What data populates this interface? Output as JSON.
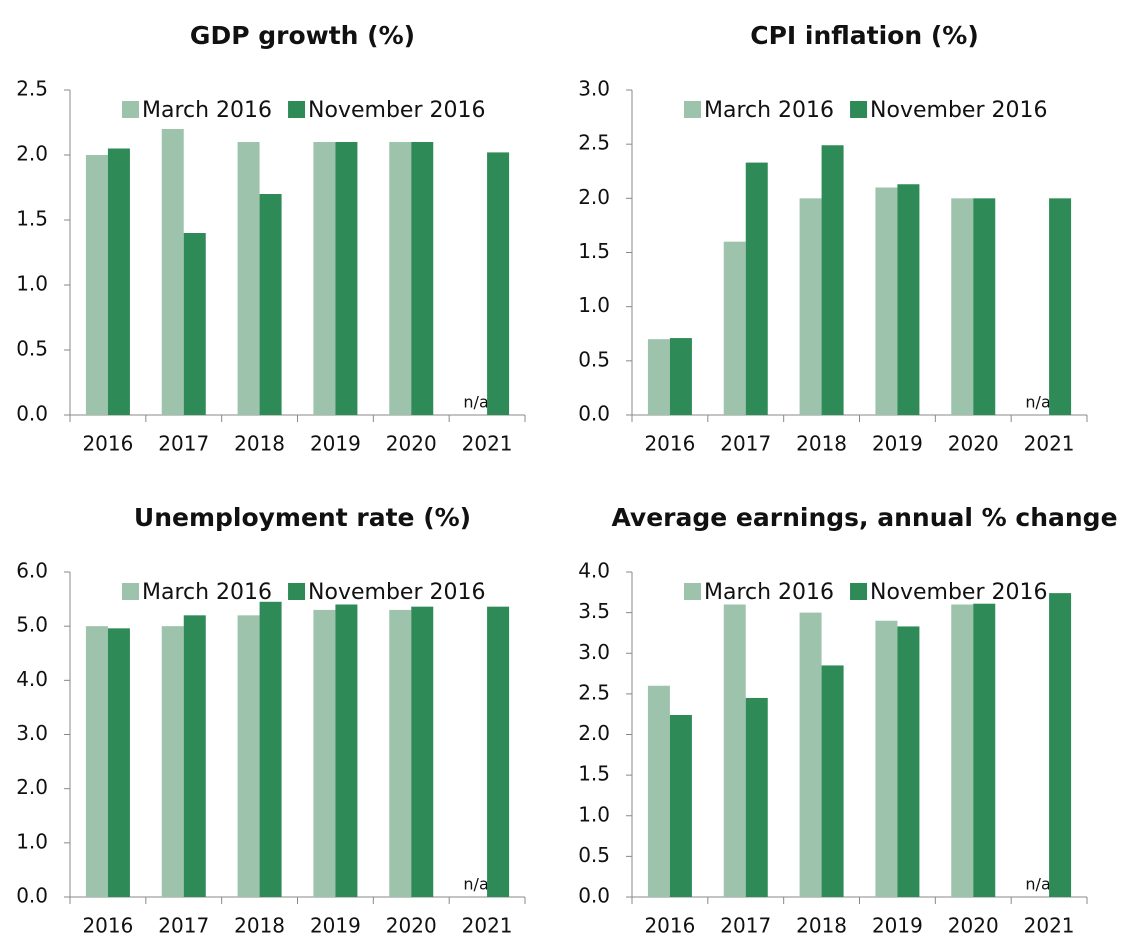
{
  "chart_data": [
    {
      "type": "bar",
      "title": "GDP growth (%)",
      "categories": [
        "2016",
        "2017",
        "2018",
        "2019",
        "2020",
        "2021"
      ],
      "series": [
        {
          "name": "March 2016",
          "color": "#9dc3ac",
          "values": [
            2.0,
            2.2,
            2.1,
            2.1,
            2.1,
            null
          ]
        },
        {
          "name": "November 2016",
          "color": "#2e8a57",
          "values": [
            2.05,
            1.4,
            1.7,
            2.1,
            2.1,
            2.02
          ]
        }
      ],
      "annotation": "n/a",
      "ylim": [
        0,
        2.5
      ],
      "yticks": [
        {
          "value": 0,
          "label": "0.0"
        },
        0.5,
        {
          "value": 1,
          "label": "1.0"
        },
        1.5,
        {
          "value": 2,
          "label": "2.0"
        },
        2.5
      ]
    },
    {
      "type": "bar",
      "title": "CPI inflation (%)",
      "categories": [
        "2016",
        "2017",
        "2018",
        "2019",
        "2020",
        "2021"
      ],
      "series": [
        {
          "name": "March 2016",
          "color": "#9dc3ac",
          "values": [
            0.7,
            1.6,
            2.0,
            2.1,
            2.0,
            null
          ]
        },
        {
          "name": "November 2016",
          "color": "#2e8a57",
          "values": [
            0.71,
            2.33,
            2.49,
            2.13,
            2.0,
            2.0
          ]
        }
      ],
      "annotation": "n/a",
      "ylim": [
        0,
        3
      ],
      "yticks": [
        {
          "value": 0,
          "label": "0.0"
        },
        0.5,
        {
          "value": 1,
          "label": "1.0"
        },
        1.5,
        {
          "value": 2,
          "label": "2.0"
        },
        2.5,
        {
          "value": 3,
          "label": "3.0"
        }
      ]
    },
    {
      "type": "bar",
      "title": "Unemployment rate (%)",
      "categories": [
        "2016",
        "2017",
        "2018",
        "2019",
        "2020",
        "2021"
      ],
      "series": [
        {
          "name": "March 2016",
          "color": "#9dc3ac",
          "values": [
            5.0,
            5.0,
            5.2,
            5.3,
            5.3,
            null
          ]
        },
        {
          "name": "November 2016",
          "color": "#2e8a57",
          "values": [
            4.96,
            5.2,
            5.45,
            5.4,
            5.36,
            5.36
          ]
        }
      ],
      "annotation": "n/a",
      "ylim": [
        0,
        6
      ],
      "yticks": [
        {
          "value": 0,
          "label": "0.0"
        },
        {
          "value": 1,
          "label": "1.0"
        },
        {
          "value": 2,
          "label": "2.0"
        },
        {
          "value": 3,
          "label": "3.0"
        },
        {
          "value": 4,
          "label": "4.0"
        },
        {
          "value": 5,
          "label": "5.0"
        },
        {
          "value": 6,
          "label": "6.0"
        }
      ]
    },
    {
      "type": "bar",
      "title": "Average earnings, annual % change",
      "categories": [
        "2016",
        "2017",
        "2018",
        "2019",
        "2020",
        "2021"
      ],
      "series": [
        {
          "name": "March 2016",
          "color": "#9dc3ac",
          "values": [
            2.6,
            3.6,
            3.5,
            3.4,
            3.6,
            null
          ]
        },
        {
          "name": "November 2016",
          "color": "#2e8a57",
          "values": [
            2.24,
            2.45,
            2.85,
            3.33,
            3.61,
            3.74
          ]
        }
      ],
      "annotation": "n/a",
      "ylim": [
        0,
        4
      ],
      "yticks": [
        {
          "value": 0,
          "label": "0.0"
        },
        0.5,
        {
          "value": 1,
          "label": "1.0"
        },
        1.5,
        {
          "value": 2,
          "label": "2.0"
        },
        2.5,
        {
          "value": 3,
          "label": "3.0"
        },
        3.5,
        {
          "value": 4,
          "label": "4.0"
        }
      ]
    }
  ]
}
